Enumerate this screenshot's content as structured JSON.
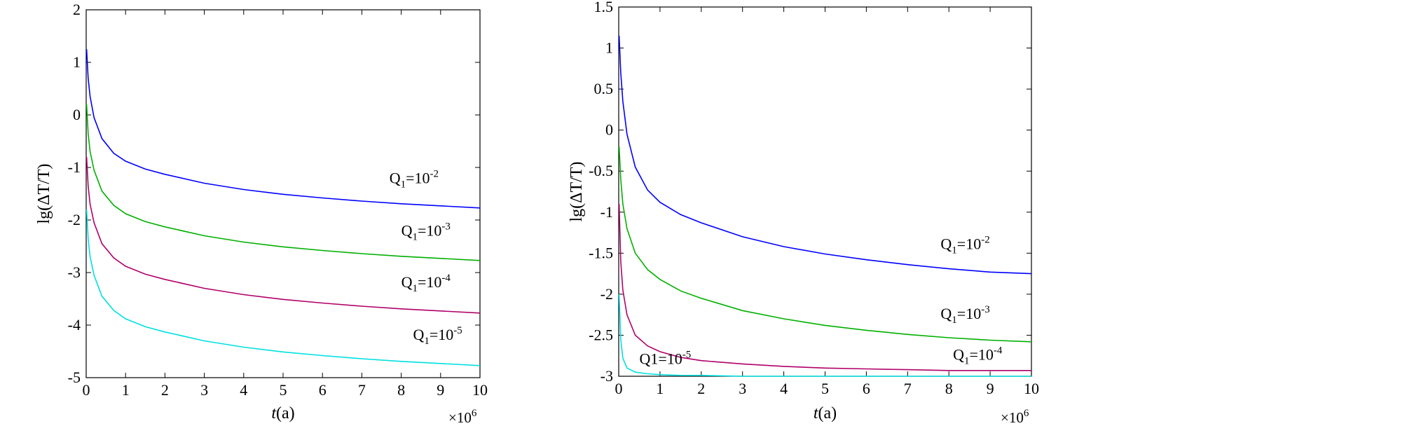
{
  "chart_data": [
    {
      "type": "line",
      "title": "",
      "xlabel_italic": "t",
      "xlabel_unit": "(a)",
      "ylabel": "lg(ΔT/T)",
      "x_multiplier_base": "×10",
      "x_multiplier_exp": "6",
      "xlim": [
        0,
        10
      ],
      "ylim": [
        -5,
        2
      ],
      "xticks": [
        0,
        1,
        2,
        3,
        4,
        5,
        6,
        7,
        8,
        9,
        10
      ],
      "yticks": [
        2,
        1,
        0,
        -1,
        -2,
        -3,
        -4,
        -5
      ],
      "xtick_labels": [
        "0",
        "1",
        "2",
        "3",
        "4",
        "5",
        "6",
        "7",
        "8",
        "9",
        "10"
      ],
      "ytick_labels": [
        "2",
        "1",
        "0",
        "-1",
        "-2",
        "-3",
        "-4",
        "-5"
      ],
      "series": [
        {
          "color": "#0000ff",
          "x": [
            0.01,
            0.05,
            0.1,
            0.2,
            0.4,
            0.7,
            1,
            1.5,
            2,
            3,
            4,
            5,
            6,
            7,
            8,
            9,
            10
          ],
          "y": [
            1.25,
            0.7,
            0.35,
            -0.05,
            -0.45,
            -0.73,
            -0.88,
            -1.03,
            -1.13,
            -1.3,
            -1.42,
            -1.51,
            -1.58,
            -1.64,
            -1.69,
            -1.73,
            -1.77
          ]
        },
        {
          "color": "#00b000",
          "x": [
            0.01,
            0.05,
            0.1,
            0.2,
            0.4,
            0.7,
            1,
            1.5,
            2,
            3,
            4,
            5,
            6,
            7,
            8,
            9,
            10
          ],
          "y": [
            0.2,
            -0.35,
            -0.7,
            -1.05,
            -1.45,
            -1.72,
            -1.88,
            -2.03,
            -2.13,
            -2.3,
            -2.42,
            -2.51,
            -2.58,
            -2.64,
            -2.69,
            -2.73,
            -2.77
          ]
        },
        {
          "color": "#b0006a",
          "x": [
            0.01,
            0.05,
            0.1,
            0.2,
            0.4,
            0.7,
            1,
            1.5,
            2,
            3,
            4,
            5,
            6,
            7,
            8,
            9,
            10
          ],
          "y": [
            -0.8,
            -1.35,
            -1.7,
            -2.05,
            -2.45,
            -2.72,
            -2.88,
            -3.03,
            -3.13,
            -3.3,
            -3.42,
            -3.51,
            -3.58,
            -3.64,
            -3.69,
            -3.73,
            -3.77
          ]
        },
        {
          "color": "#00e0e0",
          "x": [
            0.01,
            0.05,
            0.1,
            0.2,
            0.4,
            0.7,
            1,
            1.5,
            2,
            3,
            4,
            5,
            6,
            7,
            8,
            9,
            10
          ],
          "y": [
            -1.8,
            -2.35,
            -2.7,
            -3.05,
            -3.45,
            -3.72,
            -3.88,
            -4.03,
            -4.13,
            -4.3,
            -4.42,
            -4.51,
            -4.58,
            -4.64,
            -4.69,
            -4.73,
            -4.77
          ]
        }
      ],
      "curve_labels": [
        {
          "base": "Q",
          "sub": "1",
          "mid": "=10",
          "sup": "-2",
          "x": 7.7,
          "y": -1.3
        },
        {
          "base": "Q",
          "sub": "1",
          "mid": "=10",
          "sup": "-3",
          "x": 8.0,
          "y": -2.3
        },
        {
          "base": "Q",
          "sub": "1",
          "mid": "=10",
          "sup": "-4",
          "x": 8.0,
          "y": -3.28
        },
        {
          "base": "Q",
          "sub": "1",
          "mid": "=10",
          "sup": "-5",
          "x": 8.3,
          "y": -4.28
        }
      ]
    },
    {
      "type": "line",
      "title": "",
      "xlabel_italic": "t",
      "xlabel_unit": "(a)",
      "ylabel": "lg(ΔT/T)",
      "x_multiplier_base": "×10",
      "x_multiplier_exp": "6",
      "xlim": [
        0,
        10
      ],
      "ylim": [
        -3,
        1.5
      ],
      "xticks": [
        0,
        1,
        2,
        3,
        4,
        5,
        6,
        7,
        8,
        9,
        10
      ],
      "yticks": [
        1.5,
        1,
        0.5,
        0,
        -0.5,
        -1,
        -1.5,
        -2,
        -2.5,
        -3
      ],
      "xtick_labels": [
        "0",
        "1",
        "2",
        "3",
        "4",
        "5",
        "6",
        "7",
        "8",
        "9",
        "10"
      ],
      "ytick_labels": [
        "1.5",
        "1",
        "0.5",
        "0",
        "-0.5",
        "-1",
        "-1.5",
        "-2",
        "-2.5",
        "-3"
      ],
      "series": [
        {
          "color": "#0000ff",
          "x": [
            0.01,
            0.05,
            0.1,
            0.2,
            0.4,
            0.7,
            1,
            1.5,
            2,
            3,
            4,
            5,
            6,
            7,
            8,
            9,
            10
          ],
          "y": [
            1.15,
            0.7,
            0.35,
            -0.05,
            -0.45,
            -0.73,
            -0.88,
            -1.03,
            -1.13,
            -1.3,
            -1.42,
            -1.51,
            -1.58,
            -1.64,
            -1.69,
            -1.73,
            -1.75
          ]
        },
        {
          "color": "#00b000",
          "x": [
            0.01,
            0.05,
            0.1,
            0.2,
            0.4,
            0.7,
            1,
            1.5,
            2,
            3,
            4,
            5,
            6,
            7,
            8,
            9,
            10
          ],
          "y": [
            -0.2,
            -0.6,
            -0.9,
            -1.2,
            -1.5,
            -1.7,
            -1.82,
            -1.96,
            -2.05,
            -2.2,
            -2.3,
            -2.38,
            -2.44,
            -2.49,
            -2.53,
            -2.56,
            -2.58
          ]
        },
        {
          "color": "#b0006a",
          "x": [
            0.01,
            0.05,
            0.1,
            0.2,
            0.4,
            0.7,
            1,
            1.5,
            2,
            3,
            4,
            5,
            6,
            7,
            8,
            9,
            10
          ],
          "y": [
            -0.9,
            -1.6,
            -1.95,
            -2.25,
            -2.5,
            -2.63,
            -2.7,
            -2.77,
            -2.81,
            -2.85,
            -2.88,
            -2.9,
            -2.91,
            -2.92,
            -2.93,
            -2.93,
            -2.93
          ]
        },
        {
          "color": "#00e0e0",
          "x": [
            0.01,
            0.05,
            0.1,
            0.2,
            0.4,
            0.7,
            1,
            1.5,
            2,
            3,
            4,
            5,
            6,
            7,
            8,
            9,
            10
          ],
          "y": [
            -2.0,
            -2.55,
            -2.78,
            -2.9,
            -2.95,
            -2.97,
            -2.98,
            -2.99,
            -2.99,
            -3.0,
            -3.0,
            -3.0,
            -3.0,
            -3.0,
            -3.0,
            -3.0,
            -3.0
          ]
        }
      ],
      "curve_labels": [
        {
          "base": "Q",
          "sub": "1",
          "mid": "=10",
          "sup": "-2",
          "x": 7.8,
          "y": -1.45
        },
        {
          "base": "Q",
          "sub": "1",
          "mid": "=10",
          "sup": "-3",
          "x": 7.8,
          "y": -2.3
        },
        {
          "base": "Q",
          "sub": "1",
          "mid": "=10",
          "sup": "-4",
          "x": 8.1,
          "y": -2.8
        },
        {
          "base": "Q1=10",
          "sub": "",
          "mid": "",
          "sup": "-5",
          "x": 0.5,
          "y": -2.85
        }
      ]
    }
  ]
}
